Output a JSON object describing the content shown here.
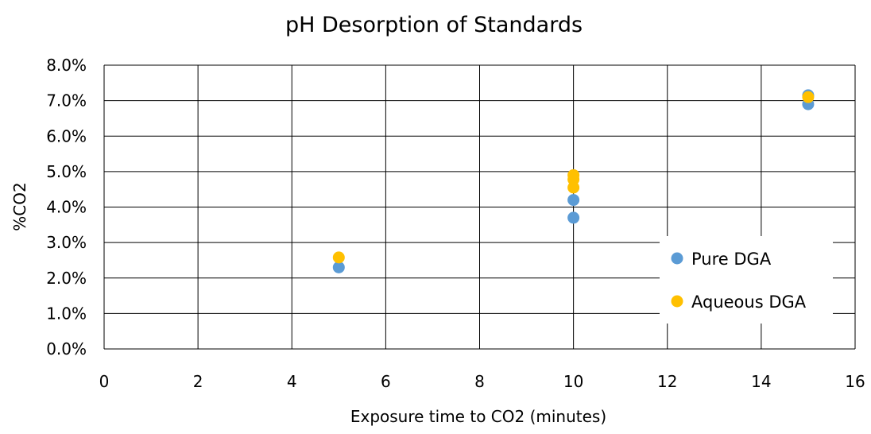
{
  "chart_data": {
    "type": "scatter",
    "title": "pH Desorption of Standards",
    "xlabel": "Exposure time to CO2 (minutes)",
    "ylabel": "%CO2",
    "xlim": [
      0,
      16
    ],
    "ylim": [
      0,
      0.08
    ],
    "x_ticks": [
      0,
      2,
      4,
      6,
      8,
      10,
      12,
      14,
      16
    ],
    "x_tick_labels": [
      "0",
      "2",
      "4",
      "6",
      "8",
      "10",
      "12",
      "14",
      "16"
    ],
    "y_ticks": [
      0,
      0.01,
      0.02,
      0.03,
      0.04,
      0.05,
      0.06,
      0.07,
      0.08
    ],
    "y_tick_labels": [
      "0.0%",
      "1.0%",
      "2.0%",
      "3.0%",
      "4.0%",
      "5.0%",
      "6.0%",
      "7.0%",
      "8.0%"
    ],
    "grid": true,
    "legend_position": "right",
    "series": [
      {
        "name": "Pure DGA",
        "color": "#5b9bd5",
        "points": [
          {
            "x": 5,
            "y": 0.023
          },
          {
            "x": 10,
            "y": 0.037
          },
          {
            "x": 10,
            "y": 0.042
          },
          {
            "x": 15,
            "y": 0.069
          },
          {
            "x": 15,
            "y": 0.0715
          }
        ]
      },
      {
        "name": "Aqueous DGA",
        "color": "#ffc000",
        "points": [
          {
            "x": 5,
            "y": 0.0258
          },
          {
            "x": 10,
            "y": 0.0455
          },
          {
            "x": 10,
            "y": 0.0478
          },
          {
            "x": 10,
            "y": 0.049
          },
          {
            "x": 15,
            "y": 0.071
          }
        ]
      }
    ]
  }
}
